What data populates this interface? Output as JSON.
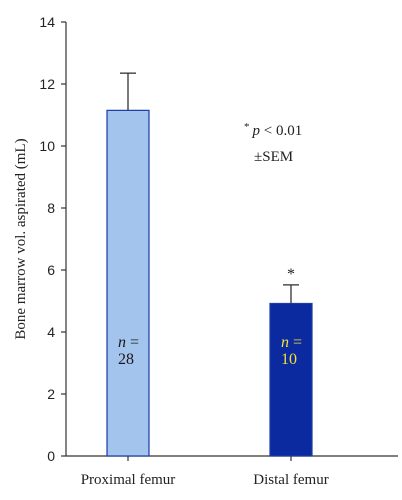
{
  "chart_data": {
    "type": "bar",
    "title": "",
    "xlabel": "",
    "ylabel": "Bone marrow vol. aspirated (mL)",
    "ylim": [
      0,
      14
    ],
    "yticks": [
      0,
      2,
      4,
      6,
      8,
      10,
      12,
      14
    ],
    "grid": false,
    "categories": [
      "Proximal femur",
      "Distal femur"
    ],
    "values": [
      11.15,
      4.92
    ],
    "errors": [
      1.2,
      0.6
    ],
    "bar_colors": [
      "#a3c4ec",
      "#0b2aa0"
    ],
    "bar_edge_color": "#1a3aa8",
    "sample_sizes": [
      {
        "n_label": "n =",
        "n_value": "28",
        "text_color": "#1a1a1a"
      },
      {
        "n_label": "n =",
        "n_value": "10",
        "text_color": "#f2e23a"
      }
    ],
    "significance_marks": [
      "",
      "*"
    ],
    "annotation": {
      "star": "*",
      "p_label": "p",
      "p_text": " < 0.01",
      "sem_text": "±SEM"
    }
  }
}
